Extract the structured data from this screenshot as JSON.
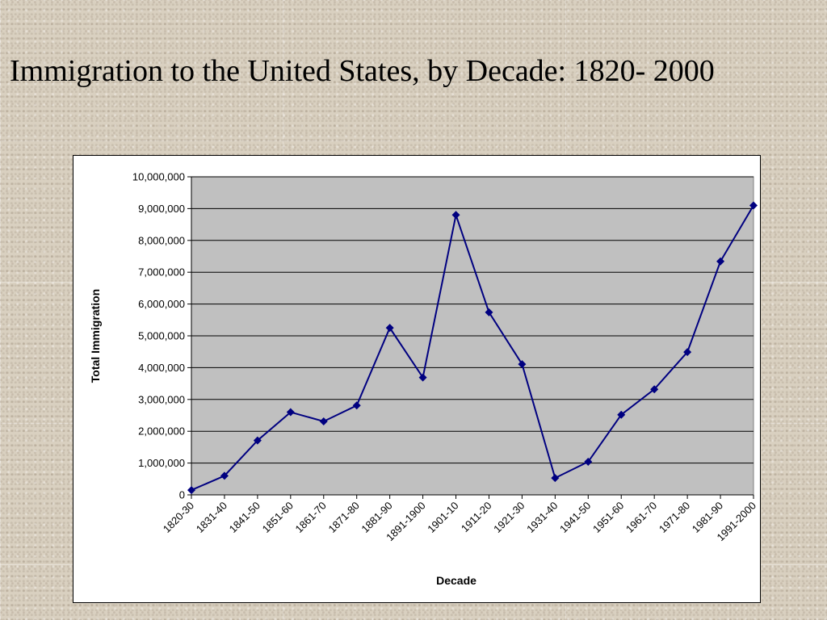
{
  "slide": {
    "title": "Immigration to the United States, by Decade: 1820- 2000"
  },
  "chart_data": {
    "type": "line",
    "title": "",
    "xlabel": "Decade",
    "ylabel": "Total Immigration",
    "ylim": [
      0,
      10000000
    ],
    "yticks": [
      0,
      1000000,
      2000000,
      3000000,
      4000000,
      5000000,
      6000000,
      7000000,
      8000000,
      9000000,
      10000000
    ],
    "ytick_labels": [
      "0",
      "1,000,000",
      "2,000,000",
      "3,000,000",
      "4,000,000",
      "5,000,000",
      "6,000,000",
      "7,000,000",
      "8,000,000",
      "9,000,000",
      "10,000,000"
    ],
    "grid": "horizontal",
    "legend": "none",
    "categories": [
      "1820-30",
      "1831-40",
      "1841-50",
      "1851-60",
      "1861-70",
      "1871-80",
      "1881-90",
      "1891-1900",
      "1901-10",
      "1911-20",
      "1921-30",
      "1931-40",
      "1941-50",
      "1951-60",
      "1961-70",
      "1971-80",
      "1981-90",
      "1991-2000"
    ],
    "series": [
      {
        "values": [
          150000,
          600000,
          1710000,
          2600000,
          2310000,
          2810000,
          5250000,
          3690000,
          8800000,
          5740000,
          4110000,
          530000,
          1040000,
          2520000,
          3320000,
          4490000,
          7340000,
          9100000
        ],
        "color": "#000080",
        "marker": "diamond"
      }
    ],
    "plot_background": "#c0c0c0"
  }
}
